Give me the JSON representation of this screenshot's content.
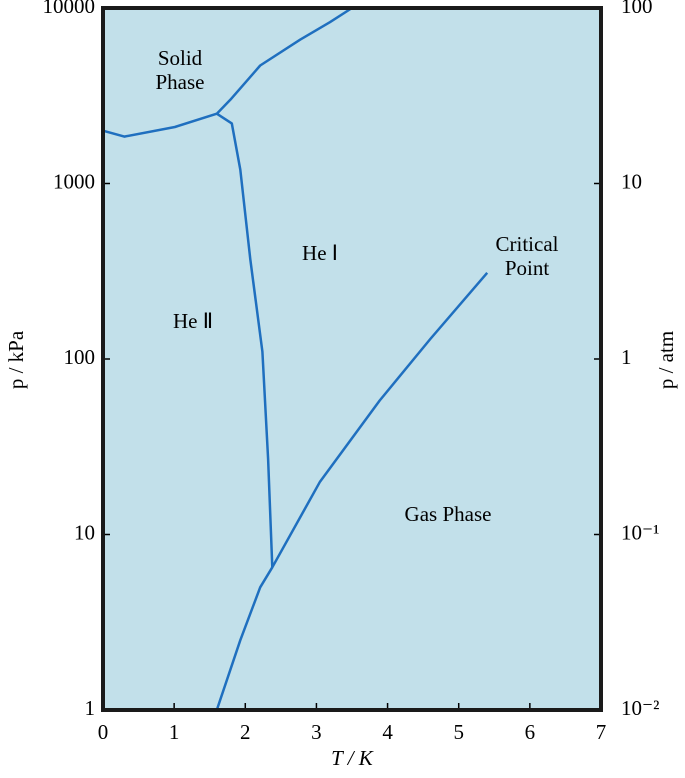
{
  "chart_data": {
    "type": "line",
    "xlabel": "T / K",
    "ylabel": "p / kPa",
    "y2label": "p / atm",
    "xlim": [
      0,
      7
    ],
    "xticks": [
      0,
      1,
      2,
      3,
      4,
      5,
      6,
      7
    ],
    "ylim": [
      1,
      10000
    ],
    "yticks": [
      1,
      10,
      100,
      1000,
      10000
    ],
    "yscale": "log",
    "y2lim": [
      0.01,
      100
    ],
    "y2ticks": [
      {
        "value": 0.01,
        "label": "10⁻²"
      },
      {
        "value": 0.1,
        "label": "10⁻¹"
      },
      1,
      10,
      100
    ],
    "y2scale": "log",
    "background": "#c2e0ea",
    "series": [
      {
        "color": "#1f6fbf",
        "x": [
          0,
          0.3,
          1.01,
          1.6,
          1.79,
          2.21,
          2.77,
          3.19,
          3.5
        ],
        "values": [
          2000,
          1850,
          2100,
          2500,
          3000,
          4700,
          6600,
          8300,
          10000
        ]
      },
      {
        "color": "#1f6fbf",
        "x": [
          1.6,
          1.81,
          1.93,
          2.07,
          2.24,
          2.32,
          2.38
        ],
        "values": [
          2500,
          2200,
          1200,
          370,
          110,
          27,
          6.5
        ]
      },
      {
        "color": "#1f6fbf",
        "x": [
          1.6,
          1.93,
          2.21,
          2.38,
          3.05,
          3.89,
          4.6,
          5.4
        ],
        "values": [
          1,
          2.5,
          5,
          6.5,
          20,
          58,
          130,
          310
        ]
      }
    ],
    "annotations": [
      "Solid",
      "Phase",
      "He Ⅰ",
      "He Ⅱ",
      "Critical",
      "Point",
      "Gas Phase"
    ]
  }
}
